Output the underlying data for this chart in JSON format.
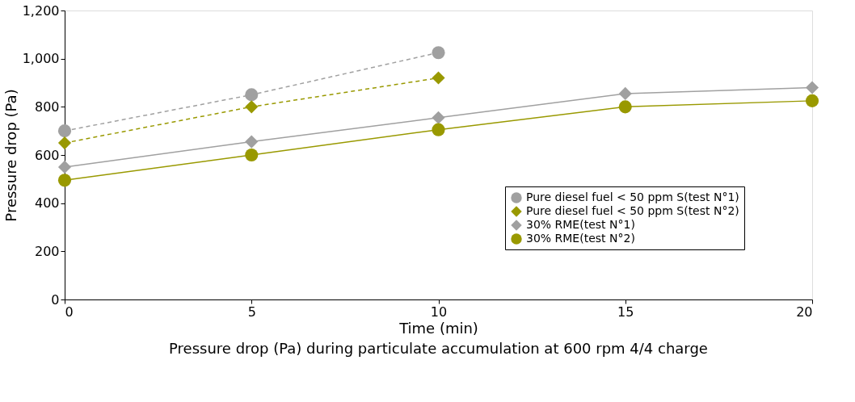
{
  "chart_data": {
    "type": "line",
    "xlabel": "Time (min)",
    "ylabel": "Pressure drop (Pa)",
    "annotations": [
      "Pressure drop (Pa) during particulate accumulation at 600 rpm 4/4 charge"
    ],
    "x": [
      0,
      5,
      10,
      15,
      20
    ],
    "series": [
      {
        "name": "Pure diesel fuel < 50 ppm S(test N°1)",
        "color": "#a0a0a0",
        "marker": "circle",
        "line_style": "dashed",
        "values": [
          700,
          850,
          1025,
          null,
          null
        ]
      },
      {
        "name": "Pure diesel fuel < 50 ppm S(test N°2)",
        "color": "#999900",
        "marker": "diamond",
        "line_style": "dashed",
        "values": [
          650,
          800,
          920,
          null,
          null
        ]
      },
      {
        "name": "30% RME(test N°1)",
        "color": "#a0a0a0",
        "marker": "diamond",
        "line_style": "solid",
        "values": [
          550,
          655,
          755,
          855,
          880
        ]
      },
      {
        "name": "30% RME(test N°2)",
        "color": "#999900",
        "marker": "circle",
        "line_style": "solid",
        "values": [
          495,
          600,
          705,
          800,
          825
        ]
      }
    ],
    "xlim": [
      0,
      20
    ],
    "xticks": [
      0,
      5,
      10,
      15,
      20
    ],
    "ylim": [
      0,
      1200
    ],
    "yticks": [
      0,
      200,
      400,
      600,
      800,
      {
        "value": 1000,
        "label": "1,000"
      },
      {
        "value": 1200,
        "label": "1,200"
      }
    ],
    "grid": false,
    "legend": "right"
  }
}
